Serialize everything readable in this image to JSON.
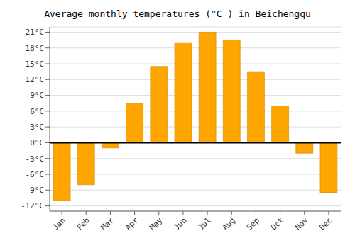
{
  "chart_data": {
    "type": "bar",
    "title": "Average monthly temperatures (°C ) in Beichengqu",
    "categories": [
      "Jan",
      "Feb",
      "Mar",
      "Apr",
      "May",
      "Jun",
      "Jul",
      "Aug",
      "Sep",
      "Oct",
      "Nov",
      "Dec"
    ],
    "values": [
      -11,
      -8,
      -1,
      7.5,
      14.5,
      19,
      21,
      19.5,
      13.5,
      7,
      -2,
      -9.5
    ],
    "color": "#FFA500",
    "ylim": [
      -13,
      22
    ],
    "yticks": [
      {
        "value": -12,
        "label": "-12°C"
      },
      {
        "value": -9,
        "label": "-9°C"
      },
      {
        "value": -6,
        "label": "-6°C"
      },
      {
        "value": -3,
        "label": "-3°C"
      },
      {
        "value": 0,
        "label": "0°C"
      },
      {
        "value": 3,
        "label": "3°C"
      },
      {
        "value": 6,
        "label": "6°C"
      },
      {
        "value": 9,
        "label": "9°C"
      },
      {
        "value": 12,
        "label": "12°C"
      },
      {
        "value": 15,
        "label": "15°C"
      },
      {
        "value": 18,
        "label": "18°C"
      },
      {
        "value": 21,
        "label": "21°C"
      }
    ],
    "grid": true
  }
}
